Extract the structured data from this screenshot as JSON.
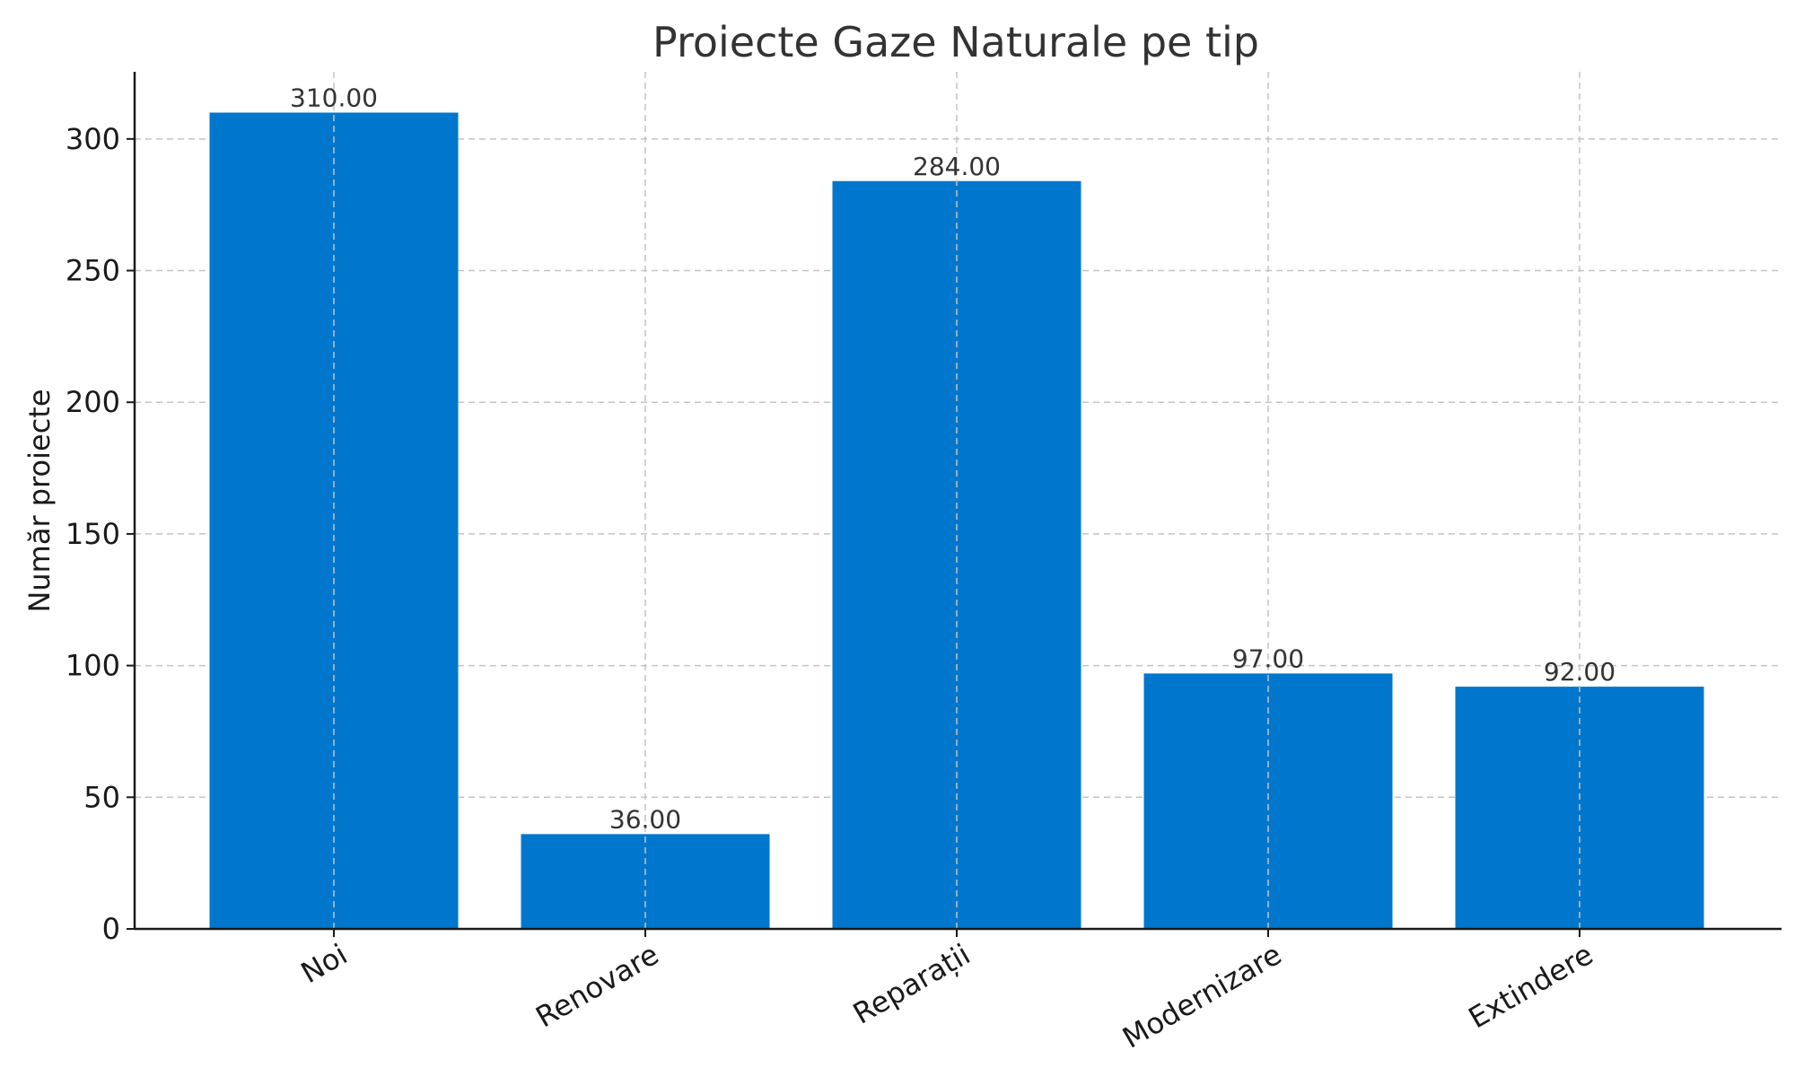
{
  "chart_data": {
    "type": "bar",
    "title": "Proiecte Gaze Naturale pe tip",
    "xlabel": "",
    "ylabel": "Număr proiecte",
    "categories": [
      "Noi",
      "Renovare",
      "Reparații",
      "Modernizare",
      "Extindere"
    ],
    "values": [
      310,
      36,
      284,
      97,
      92
    ],
    "value_labels": [
      "310.00",
      "36.00",
      "284.00",
      "97.00",
      "92.00"
    ],
    "ylim": [
      0,
      325.5
    ],
    "yticks": [
      0,
      50,
      100,
      150,
      200,
      250,
      300
    ],
    "grid": true,
    "bar_color": "#0077cc",
    "x_tick_rotation_deg": -30
  }
}
